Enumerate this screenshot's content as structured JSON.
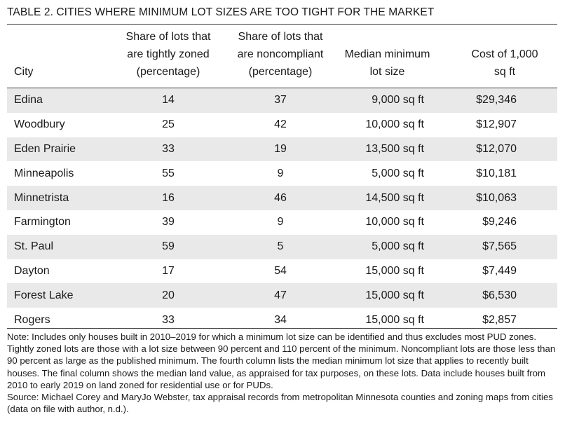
{
  "title": "TABLE 2. CITIES WHERE MINIMUM LOT SIZES ARE TOO TIGHT FOR THE MARKET",
  "headers": {
    "city": [
      "City"
    ],
    "tight": [
      "Share of lots that",
      "are tightly zoned",
      "(percentage)"
    ],
    "noncompliant": [
      "Share of lots that",
      "are noncompliant",
      "(percentage)"
    ],
    "median": [
      "Median minimum",
      "lot size"
    ],
    "cost": [
      "Cost of 1,000",
      "sq ft"
    ]
  },
  "rows": [
    {
      "city": "Edina",
      "tight": "14",
      "noncompliant": "37",
      "median": "9,000 sq ft",
      "cost": "$29,346"
    },
    {
      "city": "Woodbury",
      "tight": "25",
      "noncompliant": "42",
      "median": "10,000 sq ft",
      "cost": "$12,907"
    },
    {
      "city": "Eden Prairie",
      "tight": "33",
      "noncompliant": "19",
      "median": "13,500 sq ft",
      "cost": "$12,070"
    },
    {
      "city": "Minneapolis",
      "tight": "55",
      "noncompliant": "9",
      "median": "5,000 sq ft",
      "cost": "$10,181"
    },
    {
      "city": "Minnetrista",
      "tight": "16",
      "noncompliant": "46",
      "median": "14,500 sq ft",
      "cost": "$10,063"
    },
    {
      "city": "Farmington",
      "tight": "39",
      "noncompliant": "9",
      "median": "10,000 sq ft",
      "cost": "$9,246"
    },
    {
      "city": "St. Paul",
      "tight": "59",
      "noncompliant": "5",
      "median": "5,000 sq ft",
      "cost": "$7,565"
    },
    {
      "city": "Dayton",
      "tight": "17",
      "noncompliant": "54",
      "median": "15,000 sq ft",
      "cost": "$7,449"
    },
    {
      "city": "Forest Lake",
      "tight": "20",
      "noncompliant": "47",
      "median": "15,000 sq ft",
      "cost": "$6,530"
    },
    {
      "city": "Rogers",
      "tight": "33",
      "noncompliant": "34",
      "median": "15,000 sq ft",
      "cost": "$2,857"
    }
  ],
  "note": "Note: Includes only houses built in 2010–2019 for which a minimum lot size can be identified and thus excludes most PUD zones. Tightly zoned lots are those with a lot size between 90 percent and 110 percent of the minimum. Noncompliant lots are those less than 90 percent as large as the published minimum. The fourth column lists the median minimum lot size that applies to recently built houses. The final column shows the median land value, as appraised for tax purposes, on these lots. Data include houses built from 2010 to early 2019 on land zoned for residential use or for PUDs.",
  "source": "Source: Michael Corey and MaryJo Webster, tax appraisal records from metropolitan Minnesota counties and zoning maps from cities (data on file with author, n.d.).",
  "colors": {
    "shaded_row": "#e9e9e9",
    "rule": "#3a3a3a"
  }
}
